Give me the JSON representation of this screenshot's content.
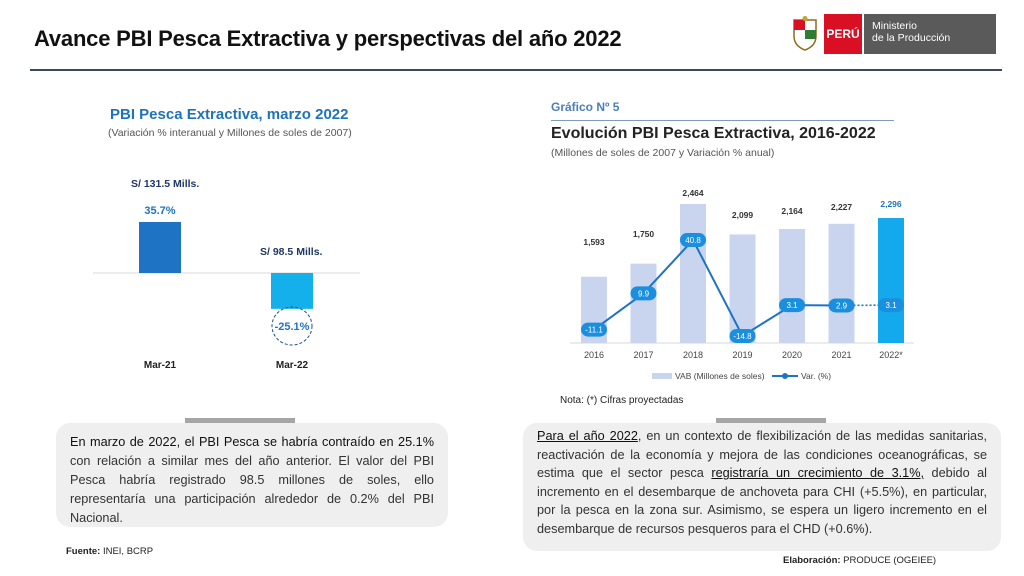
{
  "header": {
    "title": "Avance PBI Pesca Extractiva y perspectivas del año 2022",
    "logo_peru": "PERÚ",
    "logo_ministry_line1": "Ministerio",
    "logo_ministry_line2": "de la Producción"
  },
  "left_chart": {
    "title": "PBI Pesca Extractiva, marzo 2022",
    "subtitle": "(Variación % interanual y Millones de soles de 2007)",
    "chart_data": {
      "type": "bar",
      "categories": [
        "Mar-21",
        "Mar-22"
      ],
      "values": [
        35.7,
        -25.1
      ],
      "value_labels": [
        "35.7%",
        "-25.1%"
      ],
      "amount_labels": [
        "S/ 131.5 Mills.",
        "S/ 98.5 Mills."
      ],
      "colors": [
        "#1f73c4",
        "#14b0ec"
      ]
    }
  },
  "right_chart": {
    "tag": "Gráfico Nº 5",
    "title": "Evolución PBI Pesca Extractiva, 2016-2022",
    "subtitle": "(Millones de soles de 2007 y Variación % anual)",
    "chart_data": {
      "type": "bar",
      "categories": [
        "2016",
        "2017",
        "2018",
        "2019",
        "2020",
        "2021",
        "2022*"
      ],
      "series": [
        {
          "name": "VAB (Millones de soles)",
          "type": "bar",
          "values": [
            1593,
            1750,
            2464,
            2099,
            2164,
            2227,
            2296
          ],
          "labels": [
            "1,593",
            "1,750",
            "2,464",
            "2,099",
            "2,164",
            "2,227",
            "2,296"
          ]
        },
        {
          "name": "Var. (%)",
          "type": "line",
          "values": [
            -11.1,
            9.9,
            40.8,
            -14.8,
            3.1,
            2.9,
            3.1
          ],
          "labels": [
            "-11.1",
            "9.9",
            "40.8",
            "-14.8",
            "3.1",
            "2.9",
            "3.1"
          ]
        }
      ],
      "bar_color": "#c9d4ee",
      "highlight_color": "#14a8ec",
      "line_color": "#1f73c4"
    },
    "note": "Nota: (*) Cifras proyectadas"
  },
  "text_left": {
    "lead": "En marzo de 2022, el PBI Pesca se habría contraído en 25.1%",
    "body": " con relación a similar mes del año anterior. El valor del PBI Pesca habría registrado 98.5 millones de soles, ello representaría una participación alrededor de 0.2% del PBI Nacional",
    "end": "."
  },
  "text_right": {
    "lead": "Para el año 2022",
    "part1": ", en un contexto de flexibilización de las medidas sanitarias, reactivación de la economía y mejora de las condiciones oceanográficas, se estima que el sector pesca ",
    "underlined": "registraría un crecimiento de 3.1%,",
    "part2": " debido al incremento en el desembarque de anchoveta para CHI (+5.5%), en particular, por la pesca en la zona sur. Asimismo, se espera un ligero incremento en el desembarque de recursos pesqueros para el CHD (+0.6%)."
  },
  "footer": {
    "source_label": "Fuente:",
    "source_value": " INEI, BCRP",
    "elab_label": "Elaboración:",
    "elab_value": " PRODUCE (OGEIEE)"
  }
}
